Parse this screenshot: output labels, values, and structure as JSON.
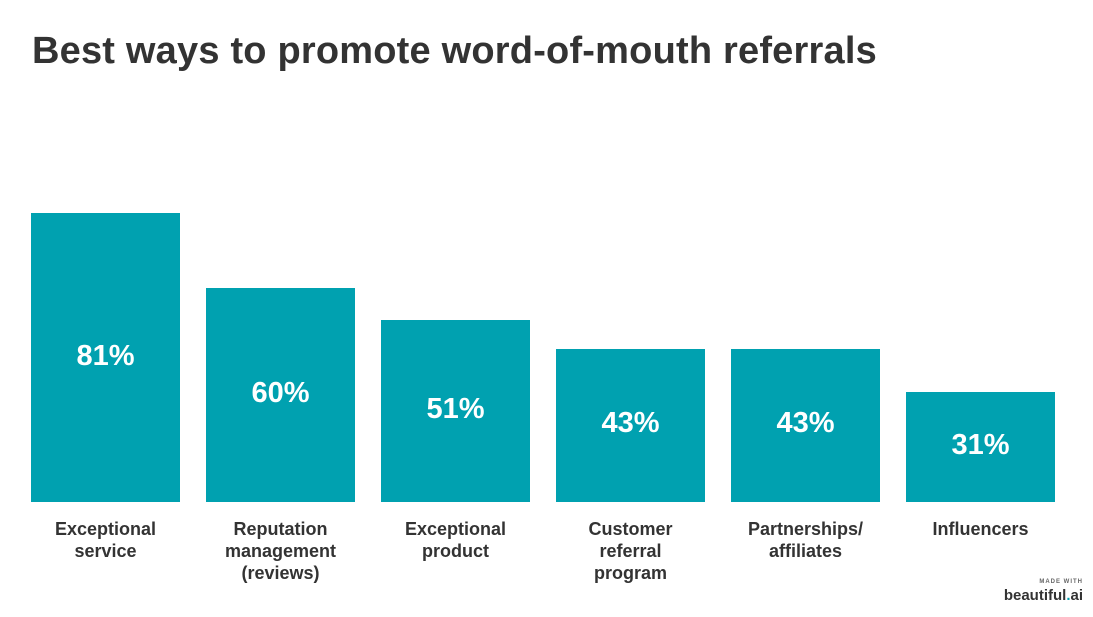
{
  "title": "Best ways to promote word-of-mouth referrals",
  "colors": {
    "bar": "#00a1b0",
    "bar_text": "#ffffff",
    "text": "#333333"
  },
  "branding": {
    "small": "MADE WITH",
    "name": "beautiful",
    "dot": ".",
    "suffix": "ai"
  },
  "chart_data": {
    "type": "bar",
    "title": "Best ways to promote word-of-mouth referrals",
    "categories": [
      "Exceptional\nservice",
      "Reputation\nmanagement\n(reviews)",
      "Exceptional\nproduct",
      "Customer\nreferral\nprogram",
      "Partnerships/\naffiliates",
      "Influencers"
    ],
    "values": [
      81,
      60,
      51,
      43,
      43,
      31
    ],
    "value_labels": [
      "81%",
      "60%",
      "51%",
      "43%",
      "43%",
      "31%"
    ],
    "ylim": [
      0,
      100
    ],
    "grid": false,
    "legend": "none"
  }
}
